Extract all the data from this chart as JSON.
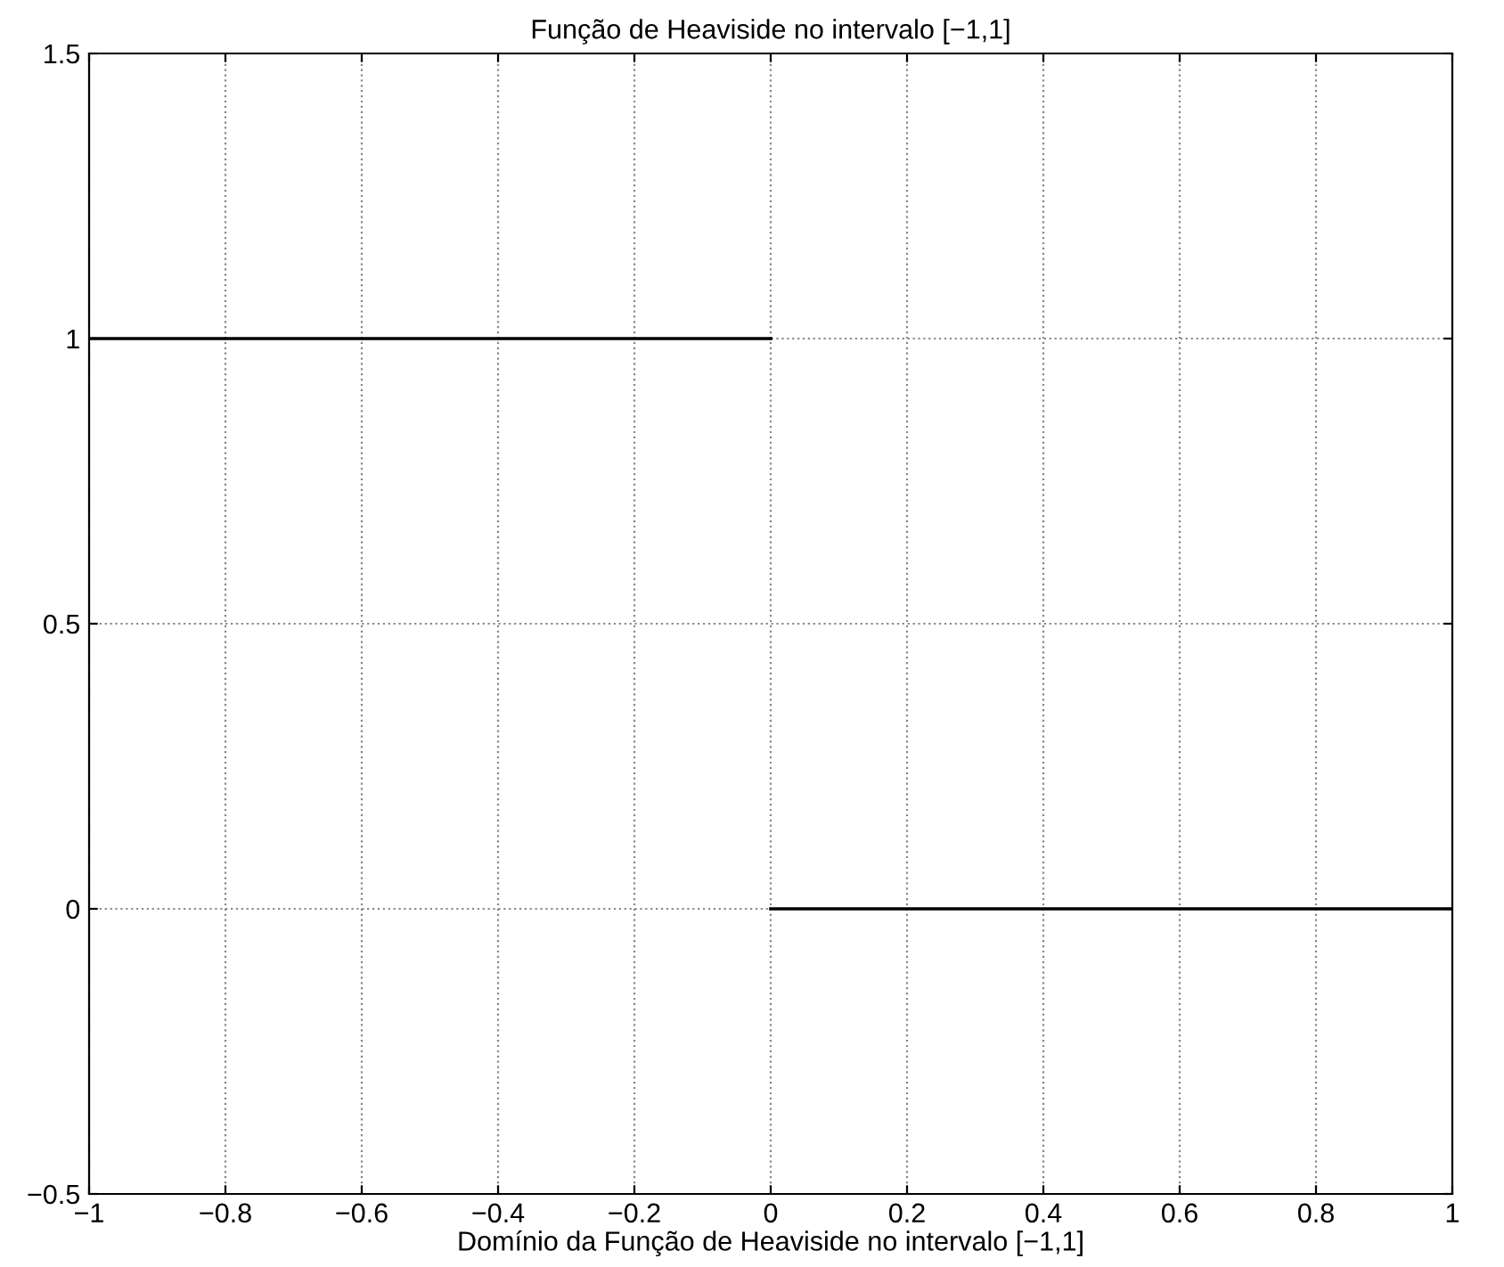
{
  "chart_data": {
    "type": "line",
    "title": "Função de Heaviside no intervalo [−1,1]",
    "xlabel": "Domínio da Função de Heaviside no intervalo [−1,1]",
    "series": [
      {
        "color": "#000000",
        "x": [
          -1,
          0
        ],
        "values": [
          1,
          1
        ]
      },
      {
        "color": "#000000",
        "x": [
          0,
          1
        ],
        "values": [
          0,
          0
        ]
      }
    ],
    "xlim": [
      -1,
      1
    ],
    "xticks": [
      {
        "value": -1,
        "label": "−1"
      },
      {
        "value": -0.8,
        "label": "−0.8"
      },
      {
        "value": -0.6,
        "label": "−0.6"
      },
      {
        "value": -0.4,
        "label": "−0.4"
      },
      {
        "value": -0.2,
        "label": "−0.2"
      },
      0,
      0.2,
      0.4,
      0.6,
      0.8,
      1
    ],
    "ylim": [
      -0.5,
      1.5
    ],
    "yticks": [
      {
        "value": -0.5,
        "label": "−0.5"
      },
      0,
      0.5,
      1,
      1.5
    ],
    "grid": true,
    "line_style": "solid",
    "marker": "none"
  }
}
